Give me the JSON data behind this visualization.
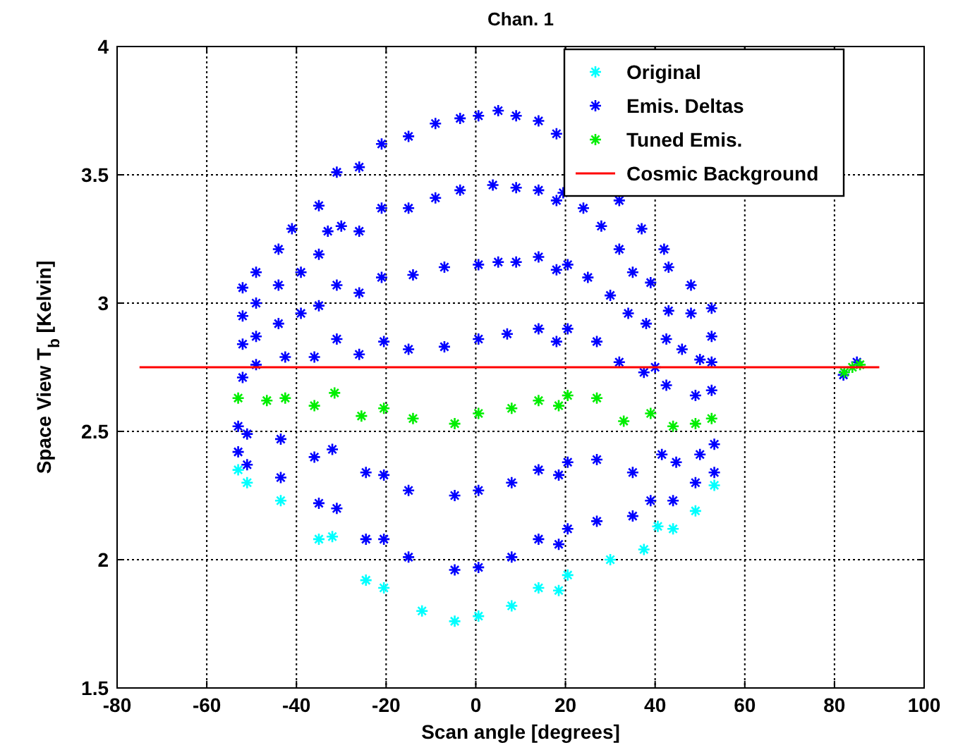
{
  "chart_data": {
    "type": "scatter",
    "title": "Chan. 1",
    "xlabel": "Scan angle [degrees]",
    "ylabel": "Space View T$_{b}$ [Kelvin]",
    "xlim": [
      -80,
      100
    ],
    "xticks": [
      -80,
      -60,
      -40,
      -20,
      0,
      20,
      40,
      60,
      80,
      100
    ],
    "ylim": [
      1.5,
      4
    ],
    "yticks": [
      1.5,
      2,
      2.5,
      3,
      3.5,
      4
    ],
    "grid": true,
    "legend": "top right",
    "marker": "cross",
    "series": [
      {
        "name": "Original",
        "color": "#00ffff",
        "x": [
          -53,
          -51,
          -43.5,
          -35,
          -32,
          -24.5,
          -20.5,
          -12,
          -4.7,
          0.6,
          8,
          14,
          18.5,
          20.5,
          30,
          37.5,
          40.6,
          44,
          49,
          53.2
        ],
        "values": [
          2.35,
          2.3,
          2.23,
          2.08,
          2.09,
          1.92,
          1.89,
          1.8,
          1.76,
          1.78,
          1.82,
          1.89,
          1.88,
          1.94,
          2.0,
          2.04,
          2.13,
          2.12,
          2.19,
          2.29
        ]
      },
      {
        "name": "Emis. Deltas",
        "color": "#0000ff",
        "x": [
          -52,
          -49,
          -44,
          -41,
          -35,
          -31,
          -26,
          -21,
          -15,
          -9,
          -3.5,
          0.6,
          5,
          9,
          14,
          18,
          32,
          37,
          42,
          43,
          48,
          52.6,
          -52,
          -49,
          -44,
          -39,
          -35,
          -33,
          -30,
          -26,
          -21,
          -15,
          -9,
          -3.5,
          3.8,
          9,
          14,
          18,
          19.5,
          24,
          28,
          32,
          35,
          39,
          43,
          48,
          52.6,
          -52,
          -49,
          -44,
          -39,
          -35,
          -31,
          -26,
          -21,
          -14,
          -7,
          0.6,
          5,
          9,
          14,
          18,
          20.5,
          25,
          30,
          34,
          38,
          42.5,
          46,
          50,
          52.6,
          -52,
          -49,
          -42.5,
          -36,
          -31,
          -26,
          -20.5,
          -15,
          -7,
          0.6,
          7,
          14,
          18,
          20.5,
          27,
          32,
          37.5,
          40,
          42.5,
          49,
          52.6,
          -53,
          -51,
          -43.5,
          -36,
          -32,
          -24.5,
          -20.5,
          -15,
          -4.7,
          0.6,
          8,
          14,
          18.5,
          20.5,
          27,
          35,
          41.5,
          44.7,
          50,
          53.2,
          -53,
          -51,
          -43.5,
          -35,
          -31,
          -24.5,
          -20.5,
          -15,
          -4.7,
          0.6,
          8,
          14,
          18.5,
          20.5,
          27,
          35,
          39,
          44,
          49,
          53.2,
          82,
          85
        ],
        "values": [
          3.06,
          3.12,
          3.21,
          3.29,
          3.38,
          3.51,
          3.53,
          3.62,
          3.65,
          3.7,
          3.72,
          3.73,
          3.75,
          3.73,
          3.71,
          3.66,
          3.4,
          3.29,
          3.21,
          3.14,
          3.07,
          2.98,
          2.95,
          3.0,
          3.07,
          3.12,
          3.19,
          3.28,
          3.3,
          3.28,
          3.37,
          3.37,
          3.41,
          3.44,
          3.46,
          3.45,
          3.44,
          3.4,
          3.43,
          3.37,
          3.3,
          3.21,
          3.12,
          3.08,
          2.97,
          2.96,
          2.87,
          2.84,
          2.87,
          2.92,
          2.96,
          2.99,
          3.07,
          3.04,
          3.1,
          3.11,
          3.14,
          3.15,
          3.16,
          3.16,
          3.18,
          3.13,
          3.15,
          3.1,
          3.03,
          2.96,
          2.92,
          2.86,
          2.82,
          2.78,
          2.77,
          2.71,
          2.76,
          2.79,
          2.79,
          2.86,
          2.8,
          2.85,
          2.82,
          2.83,
          2.86,
          2.88,
          2.9,
          2.85,
          2.9,
          2.85,
          2.77,
          2.73,
          2.75,
          2.68,
          2.64,
          2.66,
          2.52,
          2.49,
          2.47,
          2.4,
          2.43,
          2.34,
          2.33,
          2.27,
          2.25,
          2.27,
          2.3,
          2.35,
          2.33,
          2.38,
          2.39,
          2.34,
          2.41,
          2.38,
          2.41,
          2.45,
          2.42,
          2.37,
          2.32,
          2.22,
          2.2,
          2.08,
          2.08,
          2.01,
          1.96,
          1.97,
          2.01,
          2.08,
          2.06,
          2.12,
          2.15,
          2.17,
          2.23,
          2.23,
          2.3,
          2.34,
          2.72,
          2.77
        ]
      },
      {
        "name": "Tuned Emis.",
        "color": "#00ee00",
        "x": [
          -53,
          -46.6,
          -42.5,
          -36,
          -31.5,
          -25.5,
          -20.5,
          -14,
          -4.7,
          0.6,
          8,
          14,
          18.5,
          20.5,
          27,
          33,
          39,
          44,
          49,
          52.6,
          82.2,
          84,
          85.7
        ],
        "values": [
          2.63,
          2.62,
          2.63,
          2.6,
          2.65,
          2.56,
          2.59,
          2.55,
          2.53,
          2.57,
          2.59,
          2.62,
          2.6,
          2.64,
          2.63,
          2.54,
          2.57,
          2.52,
          2.53,
          2.55,
          2.73,
          2.75,
          2.76
        ]
      },
      {
        "name": "Cosmic Background",
        "type": "line",
        "marker": "none",
        "color": "#ff0000",
        "x": [
          -75,
          90
        ],
        "values": [
          2.75,
          2.75
        ]
      }
    ]
  }
}
